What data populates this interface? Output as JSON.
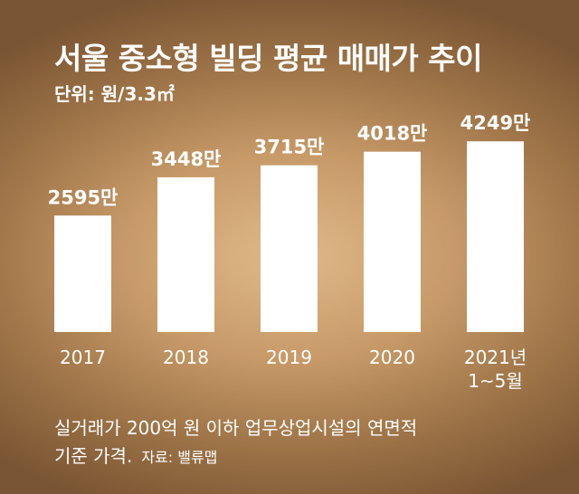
{
  "title": "서울 중소형 빌딩 평균 매매가 추이",
  "unit": "단위: 원/3.3㎡",
  "footnote_line1": "실거래가 200억 원 이하 업무상업시설의 연면적",
  "footnote_line2": "기준 가격.",
  "source": "자료: 밸류맵",
  "colors": {
    "bar": "#ffffff",
    "text": "#ffffff"
  },
  "chart_data": {
    "type": "bar",
    "categories": [
      [
        "2017"
      ],
      [
        "2018"
      ],
      [
        "2019"
      ],
      [
        "2020"
      ],
      [
        "2021년",
        "1~5월"
      ]
    ],
    "values": [
      2595,
      3448,
      3715,
      4018,
      4249
    ],
    "value_labels": [
      "2595만",
      "3448만",
      "3715만",
      "4018만",
      "4249만"
    ],
    "title": "서울 중소형 빌딩 평균 매매가 추이",
    "ylabel": "",
    "ylim": [
      0,
      4475
    ],
    "grid": false,
    "legend": "none"
  }
}
